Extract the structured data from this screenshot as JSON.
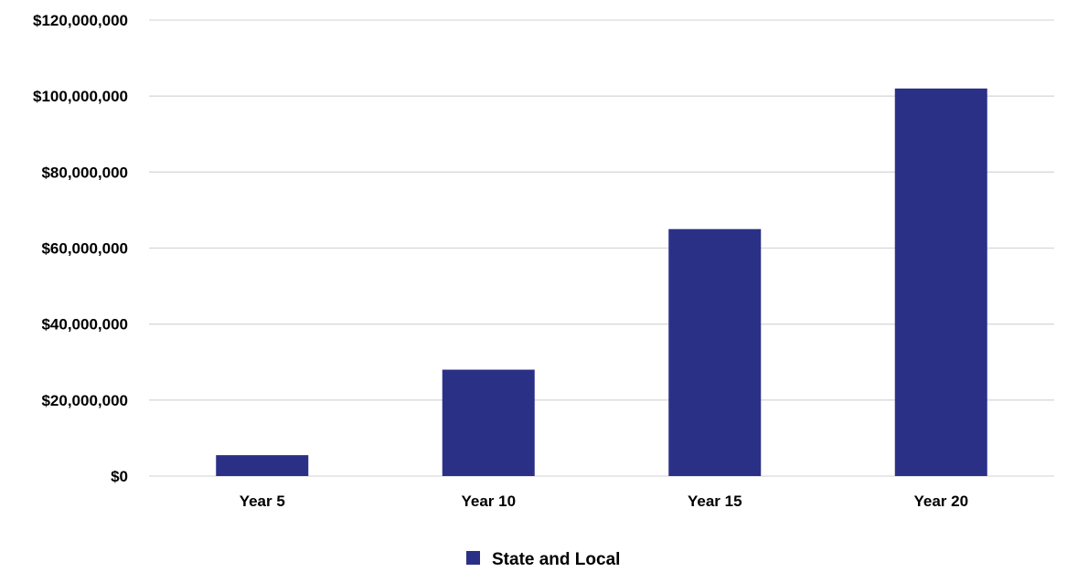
{
  "chart_data": {
    "type": "bar",
    "categories": [
      "Year 5",
      "Year 10",
      "Year 15",
      "Year 20"
    ],
    "series": [
      {
        "name": "State and Local",
        "values": [
          5500000,
          28000000,
          65000000,
          102000000
        ]
      }
    ],
    "ylim": [
      0,
      120000000
    ],
    "yticks": [
      0,
      20000000,
      40000000,
      60000000,
      80000000,
      100000000,
      120000000
    ],
    "ytick_labels": [
      "$0",
      "$20,000,000",
      "$40,000,000",
      "$60,000,000",
      "$80,000,000",
      "$100,000,000",
      "$120,000,000"
    ],
    "grid": true,
    "legend_position": "bottom",
    "colors": {
      "bar": "#2b3087",
      "grid": "#d9d9d9"
    }
  }
}
